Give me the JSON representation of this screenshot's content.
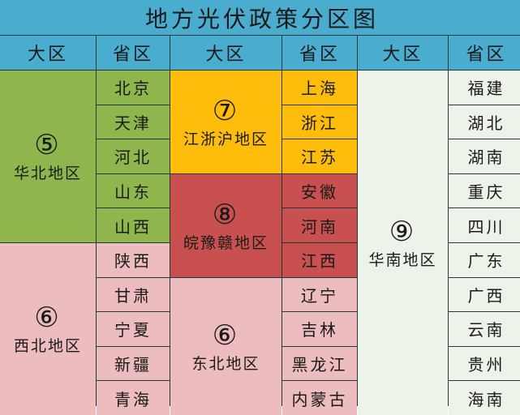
{
  "title": "地方光伏政策分区图",
  "headers": [
    "大区",
    "省区",
    "大区",
    "省区",
    "大区",
    "省区"
  ],
  "regions": [
    {
      "num": "⑤",
      "name": "华北地区",
      "color": "#8fb64c",
      "provinces": [
        "北京",
        "天津",
        "河北",
        "山东",
        "山西"
      ]
    },
    {
      "num": "⑥",
      "name": "西北地区",
      "color": "#ecbcbf",
      "provinces": [
        "陕西",
        "甘肃",
        "宁夏",
        "新疆",
        "青海"
      ]
    },
    {
      "num": "⑦",
      "name": "江浙沪地区",
      "color": "#fdbd0a",
      "provinces": [
        "上海",
        "浙江",
        "江苏"
      ]
    },
    {
      "num": "⑧",
      "name": "皖豫赣地区",
      "color": "#c8514f",
      "provinces": [
        "安徽",
        "河南",
        "江西"
      ]
    },
    {
      "num": "⑥",
      "name": "东北地区",
      "color": "#ecbcbf",
      "provinces": [
        "辽宁",
        "吉林",
        "黑龙江",
        "内蒙古"
      ]
    },
    {
      "num": "⑨",
      "name": "华南地区",
      "color": "#eef3ea",
      "provinces": [
        "福建",
        "湖北",
        "湖南",
        "重庆",
        "四川",
        "广东",
        "广西",
        "云南",
        "贵州",
        "海南"
      ]
    }
  ],
  "colors": {
    "header": "#4aaccf"
  }
}
